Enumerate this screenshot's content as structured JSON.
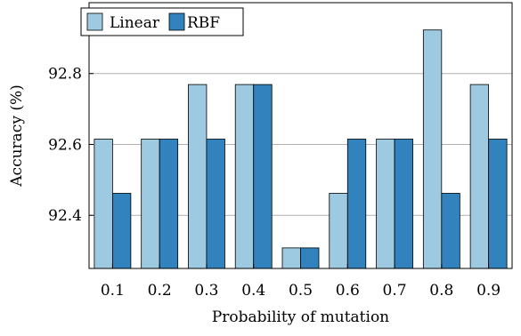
{
  "chart_data": {
    "type": "bar",
    "xlabel": "Probability of mutation",
    "ylabel": "Accuracy (%)",
    "categories": [
      "0.1",
      "0.2",
      "0.3",
      "0.4",
      "0.5",
      "0.6",
      "0.7",
      "0.8",
      "0.9"
    ],
    "series": [
      {
        "name": "Linear",
        "color": "#9ecae1",
        "values": [
          92.615,
          92.615,
          92.769,
          92.769,
          92.308,
          92.462,
          92.615,
          92.923,
          92.769
        ]
      },
      {
        "name": "RBF",
        "color": "#3182bd",
        "values": [
          92.462,
          92.615,
          92.615,
          92.769,
          92.308,
          92.615,
          92.615,
          92.462,
          92.615
        ]
      }
    ],
    "ylim": [
      92.25,
      93.0
    ],
    "yticks": [
      "92.4",
      "92.6",
      "92.8"
    ],
    "grid": true,
    "legend_position": "top-left"
  }
}
